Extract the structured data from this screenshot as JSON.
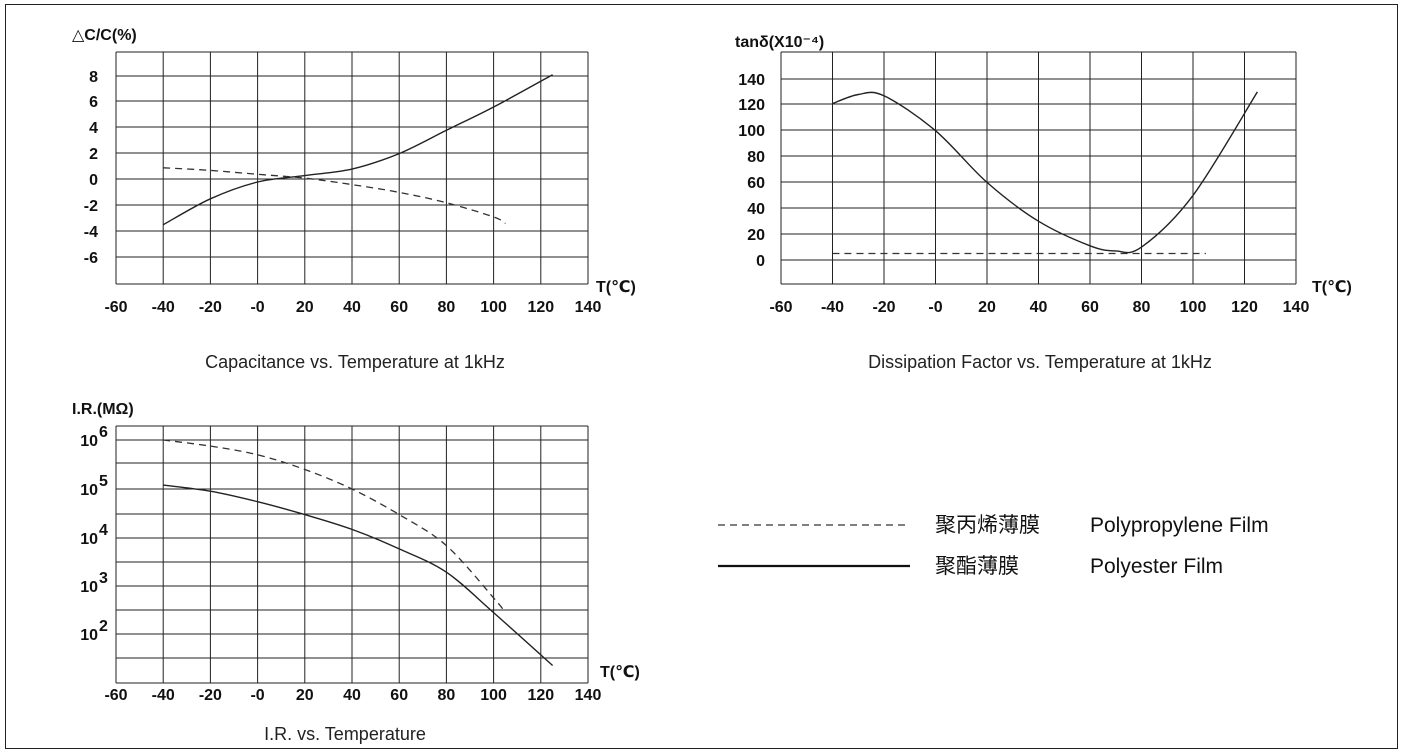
{
  "legend": [
    {
      "sample": "dashed",
      "label_cn": "聚丙烯薄膜",
      "label_en": "Polypropylene Film"
    },
    {
      "sample": "solid",
      "label_cn": "聚酯薄膜",
      "label_en": "Polyester Film"
    }
  ],
  "chart_data": [
    {
      "type": "line",
      "title": "Capacitance vs. Temperature at 1kHz",
      "ylabel": "△C/C(%)",
      "xlabel": "T(℃)",
      "x_ticks": [
        "-60",
        "-40",
        "-20",
        "-0",
        "20",
        "40",
        "60",
        "80",
        "100",
        "120",
        "140"
      ],
      "y_ticks": [
        "8",
        "6",
        "4",
        "2",
        "0",
        "-2",
        "-4",
        "-6"
      ],
      "xlim": [
        -60,
        140
      ],
      "ylim": [
        -8,
        9
      ],
      "series": [
        {
          "style": "dashed",
          "x": [
            -40,
            -20,
            0,
            20,
            40,
            60,
            80,
            100,
            105
          ],
          "y": [
            0.9,
            0.7,
            0.4,
            0.1,
            -0.4,
            -1.0,
            -1.8,
            -2.9,
            -3.4
          ]
        },
        {
          "style": "solid",
          "x": [
            -40,
            -20,
            0,
            20,
            40,
            60,
            80,
            100,
            125
          ],
          "y": [
            -3.5,
            -1.5,
            -0.2,
            0.3,
            0.8,
            2.0,
            3.8,
            5.6,
            8.1
          ]
        }
      ]
    },
    {
      "type": "line",
      "title": "Dissipation Factor vs. Temperature at 1kHz",
      "ylabel": "tanδ(X10⁻⁴)",
      "xlabel": "T(℃)",
      "x_ticks": [
        "-60",
        "-40",
        "-20",
        "-0",
        "20",
        "40",
        "60",
        "80",
        "100",
        "120",
        "140"
      ],
      "y_ticks": [
        "140",
        "120",
        "100",
        "80",
        "60",
        "40",
        "20",
        "0"
      ],
      "xlim": [
        -60,
        140
      ],
      "ylim": [
        -20,
        150
      ],
      "series": [
        {
          "style": "dashed",
          "x": [
            -40,
            105
          ],
          "y": [
            5,
            5
          ]
        },
        {
          "style": "solid",
          "x": [
            -40,
            -30,
            -20,
            0,
            20,
            40,
            60,
            70,
            80,
            100,
            125
          ],
          "y": [
            121,
            128,
            127,
            100,
            60,
            30,
            11,
            7,
            10,
            50,
            130
          ]
        }
      ]
    },
    {
      "type": "line",
      "title": "I.R. vs. Temperature",
      "ylabel": "I.R.(MΩ)",
      "xlabel": "T(℃)",
      "yscale": "log",
      "x_ticks": [
        "-60",
        "-40",
        "-20",
        "-0",
        "20",
        "40",
        "60",
        "80",
        "100",
        "120",
        "140"
      ],
      "y_ticks": [
        "10^6",
        "10^5",
        "10^4",
        "10^3",
        "10^2"
      ],
      "xlim": [
        -60,
        140
      ],
      "ylim": [
        1,
        1000000
      ],
      "series": [
        {
          "style": "dashed",
          "x": [
            -40,
            -20,
            0,
            20,
            40,
            60,
            80,
            100,
            105
          ],
          "y": [
            1000000,
            750000,
            500000,
            250000,
            100000,
            30000,
            7000,
            600,
            300
          ]
        },
        {
          "style": "solid",
          "x": [
            -40,
            -20,
            0,
            20,
            40,
            60,
            80,
            100,
            125
          ],
          "y": [
            120000,
            90000,
            55000,
            30000,
            15000,
            6000,
            2000,
            300,
            25
          ]
        }
      ]
    }
  ]
}
